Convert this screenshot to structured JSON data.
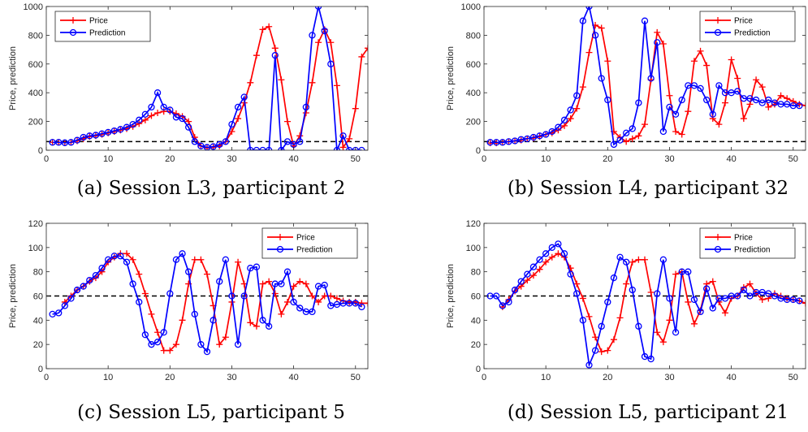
{
  "chart_data": [
    {
      "type": "line",
      "caption": "(a) Session L3, participant 2",
      "ylabel": "Price, prediction",
      "xlim": [
        0,
        52
      ],
      "ylim": [
        0,
        1000
      ],
      "xticks": [
        "0",
        "10",
        "20",
        "30",
        "40",
        "50"
      ],
      "yticks": [
        "0",
        "200",
        "400",
        "600",
        "800",
        "1000"
      ],
      "reference_line": 60,
      "legend_position": "top-left",
      "series": [
        {
          "name": "Price",
          "color": "#ff0000",
          "marker": "plus",
          "x": [
            1,
            2,
            3,
            4,
            5,
            6,
            7,
            8,
            9,
            10,
            11,
            12,
            13,
            14,
            15,
            16,
            17,
            18,
            19,
            20,
            21,
            22,
            23,
            24,
            25,
            26,
            27,
            28,
            29,
            30,
            31,
            32,
            33,
            34,
            35,
            36,
            37,
            38,
            39,
            40,
            41,
            42,
            43,
            44,
            45,
            46,
            47,
            48,
            49,
            50,
            51,
            52
          ],
          "values": [
            55,
            55,
            52,
            55,
            65,
            80,
            95,
            100,
            110,
            120,
            130,
            140,
            150,
            165,
            185,
            210,
            240,
            260,
            270,
            270,
            255,
            235,
            200,
            90,
            30,
            15,
            20,
            30,
            60,
            130,
            220,
            330,
            470,
            660,
            840,
            860,
            710,
            490,
            200,
            30,
            100,
            260,
            470,
            750,
            840,
            750,
            450,
            20,
            80,
            290,
            650,
            710
          ]
        },
        {
          "name": "Prediction",
          "color": "#0000ff",
          "marker": "circle",
          "x": [
            1,
            2,
            3,
            4,
            5,
            6,
            7,
            8,
            9,
            10,
            11,
            12,
            13,
            14,
            15,
            16,
            17,
            18,
            19,
            20,
            21,
            22,
            23,
            24,
            25,
            26,
            27,
            28,
            29,
            30,
            31,
            32,
            33,
            34,
            35,
            36,
            37,
            38,
            39,
            40,
            41,
            42,
            43,
            44,
            45,
            46,
            47,
            48,
            49,
            50,
            51
          ],
          "values": [
            55,
            55,
            52,
            55,
            70,
            90,
            100,
            105,
            115,
            125,
            135,
            145,
            160,
            180,
            210,
            250,
            300,
            400,
            300,
            280,
            230,
            220,
            160,
            60,
            30,
            20,
            25,
            40,
            60,
            180,
            300,
            370,
            0,
            0,
            0,
            0,
            660,
            0,
            60,
            40,
            60,
            300,
            800,
            1000,
            830,
            600,
            0,
            100,
            0,
            0,
            0
          ]
        }
      ]
    },
    {
      "type": "line",
      "caption": "(b) Session L4, participant 32",
      "ylabel": "Price, prediction",
      "xlim": [
        0,
        52
      ],
      "ylim": [
        0,
        1000
      ],
      "xticks": [
        "0",
        "10",
        "20",
        "30",
        "40",
        "50"
      ],
      "yticks": [
        "0",
        "200",
        "400",
        "600",
        "800",
        "1000"
      ],
      "reference_line": 60,
      "legend_position": "top-right",
      "series": [
        {
          "name": "Price",
          "color": "#ff0000",
          "marker": "plus",
          "x": [
            1,
            2,
            3,
            4,
            5,
            6,
            7,
            8,
            9,
            10,
            11,
            12,
            13,
            14,
            15,
            16,
            17,
            18,
            19,
            20,
            21,
            22,
            23,
            24,
            25,
            26,
            27,
            28,
            29,
            30,
            31,
            32,
            33,
            34,
            35,
            36,
            37,
            38,
            39,
            40,
            41,
            42,
            43,
            44,
            45,
            46,
            47,
            48,
            49,
            50,
            51,
            52
          ],
          "values": [
            50,
            50,
            55,
            60,
            65,
            70,
            80,
            85,
            95,
            110,
            120,
            140,
            170,
            220,
            290,
            440,
            680,
            870,
            850,
            620,
            130,
            90,
            60,
            80,
            100,
            180,
            490,
            820,
            740,
            380,
            130,
            110,
            270,
            620,
            690,
            590,
            220,
            180,
            330,
            630,
            500,
            220,
            320,
            490,
            440,
            300,
            320,
            380,
            360,
            340,
            320,
            310
          ]
        },
        {
          "name": "Prediction",
          "color": "#0000ff",
          "marker": "circle",
          "x": [
            1,
            2,
            3,
            4,
            5,
            6,
            7,
            8,
            9,
            10,
            11,
            12,
            13,
            14,
            15,
            16,
            17,
            18,
            19,
            20,
            21,
            22,
            23,
            24,
            25,
            26,
            27,
            28,
            29,
            30,
            31,
            32,
            33,
            34,
            35,
            36,
            37,
            38,
            39,
            40,
            41,
            42,
            43,
            44,
            45,
            46,
            47,
            48,
            49,
            50,
            51
          ],
          "values": [
            55,
            55,
            55,
            60,
            65,
            75,
            80,
            90,
            100,
            110,
            130,
            160,
            210,
            280,
            380,
            900,
            1000,
            800,
            500,
            350,
            40,
            70,
            120,
            150,
            330,
            900,
            500,
            750,
            130,
            300,
            250,
            350,
            450,
            450,
            430,
            350,
            250,
            450,
            400,
            400,
            410,
            360,
            360,
            350,
            330,
            350,
            330,
            320,
            320,
            310,
            310
          ]
        }
      ]
    },
    {
      "type": "line",
      "caption": "(c) Session L5, participant 5",
      "ylabel": "Price, prediction",
      "xlim": [
        0,
        52
      ],
      "ylim": [
        0,
        120
      ],
      "xticks": [
        "0",
        "10",
        "20",
        "30",
        "40",
        "50"
      ],
      "yticks": [
        "0",
        "20",
        "40",
        "60",
        "80",
        "100",
        "120"
      ],
      "reference_line": 60,
      "legend_position": "top-right",
      "series": [
        {
          "name": "Price",
          "color": "#ff0000",
          "marker": "plus",
          "x": [
            3,
            4,
            5,
            6,
            7,
            8,
            9,
            10,
            11,
            12,
            13,
            14,
            15,
            16,
            17,
            18,
            19,
            20,
            21,
            22,
            23,
            24,
            25,
            26,
            27,
            28,
            29,
            30,
            31,
            32,
            33,
            34,
            35,
            36,
            37,
            38,
            39,
            40,
            41,
            42,
            43,
            44,
            45,
            46,
            47,
            48,
            49,
            50,
            51,
            52
          ],
          "values": [
            55,
            60,
            65,
            68,
            72,
            75,
            80,
            88,
            92,
            95,
            95,
            90,
            78,
            62,
            45,
            30,
            15,
            15,
            20,
            40,
            70,
            90,
            90,
            78,
            52,
            20,
            26,
            55,
            88,
            70,
            38,
            35,
            70,
            72,
            62,
            45,
            55,
            68,
            72,
            70,
            60,
            55,
            60,
            60,
            58,
            56,
            55,
            55,
            54,
            54
          ]
        },
        {
          "name": "Prediction",
          "color": "#0000ff",
          "marker": "circle",
          "x": [
            1,
            2,
            3,
            4,
            5,
            6,
            7,
            8,
            9,
            10,
            11,
            12,
            13,
            14,
            15,
            16,
            17,
            18,
            19,
            20,
            21,
            22,
            23,
            24,
            25,
            26,
            27,
            28,
            29,
            30,
            31,
            32,
            33,
            34,
            35,
            36,
            37,
            38,
            39,
            40,
            41,
            42,
            43,
            44,
            45,
            46,
            47,
            48,
            49,
            50,
            51
          ],
          "values": [
            45,
            46,
            52,
            58,
            65,
            68,
            73,
            77,
            83,
            90,
            93,
            93,
            88,
            70,
            55,
            28,
            20,
            22,
            30,
            62,
            90,
            95,
            80,
            45,
            20,
            14,
            40,
            72,
            90,
            60,
            20,
            60,
            83,
            84,
            40,
            35,
            70,
            70,
            80,
            55,
            50,
            47,
            47,
            68,
            69,
            52,
            53,
            54,
            54,
            54,
            51
          ]
        }
      ]
    },
    {
      "type": "line",
      "caption": "(d) Session L5, participant 21",
      "ylabel": "Price, prediction",
      "xlim": [
        0,
        52
      ],
      "ylim": [
        0,
        120
      ],
      "xticks": [
        "0",
        "10",
        "20",
        "30",
        "40",
        "50"
      ],
      "yticks": [
        "0",
        "20",
        "40",
        "60",
        "80",
        "100",
        "120"
      ],
      "reference_line": 60,
      "legend_position": "top-right",
      "series": [
        {
          "name": "Price",
          "color": "#ff0000",
          "marker": "plus",
          "x": [
            3,
            4,
            5,
            6,
            7,
            8,
            9,
            10,
            11,
            12,
            13,
            14,
            15,
            16,
            17,
            18,
            19,
            20,
            21,
            22,
            23,
            24,
            25,
            26,
            27,
            28,
            29,
            30,
            31,
            32,
            33,
            34,
            35,
            36,
            37,
            38,
            39,
            40,
            41,
            42,
            43,
            44,
            45,
            46,
            47,
            48,
            49,
            50,
            51,
            52
          ],
          "values": [
            51,
            57,
            64,
            68,
            73,
            77,
            82,
            88,
            92,
            95,
            92,
            83,
            70,
            58,
            43,
            26,
            14,
            15,
            24,
            42,
            70,
            88,
            90,
            90,
            63,
            30,
            22,
            40,
            78,
            80,
            55,
            37,
            48,
            70,
            72,
            55,
            46,
            58,
            60,
            67,
            70,
            62,
            57,
            58,
            62,
            60,
            58,
            57,
            56,
            54
          ]
        },
        {
          "name": "Prediction",
          "color": "#0000ff",
          "marker": "circle",
          "x": [
            1,
            2,
            3,
            4,
            5,
            6,
            7,
            8,
            9,
            10,
            11,
            12,
            13,
            14,
            15,
            16,
            17,
            18,
            19,
            20,
            21,
            22,
            23,
            24,
            25,
            26,
            27,
            28,
            29,
            30,
            31,
            32,
            33,
            34,
            35,
            36,
            37,
            38,
            39,
            40,
            41,
            42,
            43,
            44,
            45,
            46,
            47,
            48,
            49,
            50,
            51
          ],
          "values": [
            60,
            60,
            52,
            55,
            65,
            72,
            78,
            84,
            90,
            95,
            100,
            103,
            95,
            78,
            62,
            40,
            3,
            15,
            35,
            55,
            75,
            92,
            88,
            65,
            35,
            10,
            8,
            62,
            90,
            58,
            30,
            80,
            80,
            57,
            47,
            66,
            50,
            58,
            58,
            60,
            60,
            65,
            60,
            63,
            63,
            62,
            60,
            58,
            57,
            57,
            56
          ]
        }
      ]
    }
  ]
}
